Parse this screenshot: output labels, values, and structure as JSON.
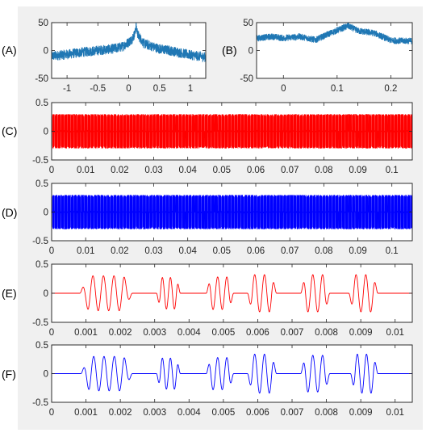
{
  "figure": {
    "background": "#f0f0f0",
    "panels": [
      {
        "label": "(A)"
      },
      {
        "label": "(B)"
      },
      {
        "label": "(C)"
      },
      {
        "label": "(D)"
      },
      {
        "label": "(E)"
      },
      {
        "label": "(F)"
      }
    ]
  },
  "chart_data": [
    {
      "label": "(A)",
      "type": "line",
      "color": "#1f77b4",
      "xlim": [
        -1.25,
        1.25
      ],
      "ylim": [
        -50,
        50
      ],
      "xticks": [
        "-1",
        "-0.5",
        "0",
        "0.5",
        "1"
      ],
      "yticks": [
        "50",
        "0",
        "-50"
      ],
      "x": [
        -1.25,
        -1.0,
        -0.75,
        -0.5,
        -0.25,
        -0.1,
        0.0,
        0.05,
        0.1,
        0.12,
        0.15,
        0.25,
        0.5,
        0.75,
        1.0,
        1.25
      ],
      "y": [
        -10,
        -7,
        -3,
        0,
        3,
        7,
        15,
        20,
        30,
        44,
        28,
        12,
        3,
        -2,
        -8,
        -12
      ],
      "noise_amplitude": 9,
      "grid": false
    },
    {
      "label": "(B)",
      "type": "line",
      "color": "#1f77b4",
      "xlim": [
        -0.05,
        0.24
      ],
      "ylim": [
        -50,
        50
      ],
      "xticks": [
        "0",
        "0.1",
        "0.2"
      ],
      "yticks": [
        "50",
        "0",
        "-50"
      ],
      "x": [
        -0.05,
        -0.02,
        0.0,
        0.03,
        0.06,
        0.08,
        0.1,
        0.12,
        0.14,
        0.17,
        0.2,
        0.24
      ],
      "y": [
        22,
        25,
        22,
        25,
        19,
        28,
        36,
        44,
        35,
        31,
        18,
        17
      ],
      "noise_amplitude": 6,
      "grid": false
    },
    {
      "label": "(C)",
      "type": "line",
      "color": "#ff0000",
      "xlim": [
        0,
        0.106
      ],
      "ylim": [
        -0.5,
        0.5
      ],
      "xticks": [
        "0",
        "0.01",
        "0.02",
        "0.03",
        "0.04",
        "0.05",
        "0.06",
        "0.07",
        "0.08",
        "0.09",
        "0.1"
      ],
      "yticks": [
        "0.5",
        "0",
        "-0.5"
      ],
      "burst_spacing": 0.00096,
      "burst_width": 0.00075,
      "amplitude": 0.3,
      "grid": false
    },
    {
      "label": "(D)",
      "type": "line",
      "color": "#0000ff",
      "xlim": [
        0,
        0.106
      ],
      "ylim": [
        -0.5,
        0.5
      ],
      "xticks": [
        "0",
        "0.01",
        "0.02",
        "0.03",
        "0.04",
        "0.05",
        "0.06",
        "0.07",
        "0.08",
        "0.09",
        "0.1"
      ],
      "yticks": [
        "0.5",
        "0",
        "-0.5"
      ],
      "burst_spacing": 0.00096,
      "burst_width": 0.00075,
      "amplitude": 0.3,
      "grid": false
    },
    {
      "label": "(E)",
      "type": "line",
      "color": "#ff0000",
      "xlim": [
        0,
        0.0105
      ],
      "ylim": [
        -0.5,
        0.5
      ],
      "xticks": [
        "0",
        "0.001",
        "0.002",
        "0.003",
        "0.004",
        "0.005",
        "0.006",
        "0.007",
        "0.008",
        "0.009",
        "0.01"
      ],
      "yticks": [
        "0.5",
        "0",
        "-0.5"
      ],
      "bursts": [
        {
          "start": 0.00082,
          "end": 0.00235,
          "cycles": 5,
          "amplitude": 0.3,
          "phase": 0
        },
        {
          "start": 0.00305,
          "end": 0.00375,
          "cycles": 3,
          "amplitude": 0.27,
          "phase": 3.14
        },
        {
          "start": 0.0045,
          "end": 0.0053,
          "cycles": 3,
          "amplitude": 0.28,
          "phase": 0
        },
        {
          "start": 0.0057,
          "end": 0.00655,
          "cycles": 3,
          "amplitude": 0.32,
          "phase": 3.14
        },
        {
          "start": 0.00725,
          "end": 0.0081,
          "cycles": 3,
          "amplitude": 0.32,
          "phase": 0
        },
        {
          "start": 0.00865,
          "end": 0.0095,
          "cycles": 3,
          "amplitude": 0.32,
          "phase": 3.14
        }
      ],
      "grid": false
    },
    {
      "label": "(F)",
      "type": "line",
      "color": "#0000ff",
      "xlim": [
        0,
        0.0105
      ],
      "ylim": [
        -0.5,
        0.5
      ],
      "xticks": [
        "0",
        "0.001",
        "0.002",
        "0.003",
        "0.004",
        "0.005",
        "0.006",
        "0.007",
        "0.008",
        "0.009",
        "0.01"
      ],
      "yticks": [
        "0.5",
        "0",
        "-0.5"
      ],
      "bursts": [
        {
          "start": 0.00085,
          "end": 0.00235,
          "cycles": 5,
          "amplitude": 0.3,
          "phase": 0
        },
        {
          "start": 0.00305,
          "end": 0.00375,
          "cycles": 3,
          "amplitude": 0.27,
          "phase": 3.14
        },
        {
          "start": 0.0045,
          "end": 0.0053,
          "cycles": 3,
          "amplitude": 0.28,
          "phase": 0
        },
        {
          "start": 0.0057,
          "end": 0.00655,
          "cycles": 3,
          "amplitude": 0.34,
          "phase": 3.14
        },
        {
          "start": 0.00725,
          "end": 0.0081,
          "cycles": 3,
          "amplitude": 0.32,
          "phase": 0
        },
        {
          "start": 0.0087,
          "end": 0.0095,
          "cycles": 3,
          "amplitude": 0.34,
          "phase": 3.14
        }
      ],
      "grid": false
    }
  ]
}
